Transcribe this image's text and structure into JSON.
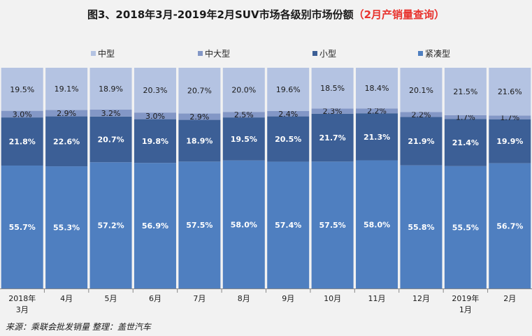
{
  "title": {
    "main": "图3、2018年3月-2019年2月SUV市场各级别市场份额",
    "highlight": "（2月产销量查询）"
  },
  "source": "来源：乘联会批发销量   整理：盖世汽车",
  "colors": {
    "background": "#f2f2f2",
    "zhongxing": "#b4c3e2",
    "zhongdaxing": "#8397c6",
    "xiaoxing": "#3c5f96",
    "jincouxing": "#4f7fc0",
    "title_highlight": "#e8322d"
  },
  "chart_data": {
    "type": "bar",
    "stacked": true,
    "percent": true,
    "categories": [
      "2018年\n3月",
      "4月",
      "5月",
      "6月",
      "7月",
      "8月",
      "9月",
      "10月",
      "11月",
      "12月",
      "2019年\n1月",
      "2月"
    ],
    "series": [
      {
        "name": "紧凑型",
        "values": [
          55.7,
          55.3,
          57.2,
          56.9,
          57.5,
          58.0,
          57.4,
          57.5,
          58.0,
          55.8,
          55.5,
          56.7
        ],
        "labels": [
          "55.7%",
          "55.3%",
          "57.2%",
          "56.9%",
          "57.5%",
          "58.0%",
          "57.4%",
          "57.5%",
          "58.0%",
          "55.8%",
          "55.5%",
          "56.7%"
        ]
      },
      {
        "name": "小型",
        "values": [
          21.8,
          22.6,
          20.7,
          19.8,
          18.9,
          19.5,
          20.5,
          21.7,
          21.3,
          21.9,
          21.4,
          19.9
        ],
        "labels": [
          "21.8%",
          "22.6%",
          "20.7%",
          "19.8%",
          "18.9%",
          "19.5%",
          "20.5%",
          "21.7%",
          "21.3%",
          "21.9%",
          "21.4%",
          "19.9%"
        ]
      },
      {
        "name": "中大型",
        "values": [
          3.0,
          2.9,
          3.2,
          3.0,
          2.9,
          2.5,
          2.4,
          2.3,
          2.2,
          2.2,
          1.7,
          1.7
        ],
        "labels": [
          "3.0%",
          "2.9%",
          "3.2%",
          "3.0%",
          "2.9%",
          "2.5%",
          "2.4%",
          "2.3%",
          "2.2%",
          "2.2%",
          "1.7%",
          "1.7%"
        ]
      },
      {
        "name": "中型",
        "values": [
          19.5,
          19.1,
          18.9,
          20.3,
          20.7,
          20.0,
          19.6,
          18.5,
          18.4,
          20.1,
          21.5,
          21.6
        ],
        "labels": [
          "19.5%",
          "19.1%",
          "18.9%",
          "20.3%",
          "20.7%",
          "20.0%",
          "19.6%",
          "18.5%",
          "18.4%",
          "20.1%",
          "21.5%",
          "21.6%"
        ]
      }
    ],
    "legend_order": [
      "中型",
      "中大型",
      "小型",
      "紧凑型"
    ],
    "legend_placement": "top",
    "ylim": [
      0,
      100
    ],
    "grid": false
  }
}
